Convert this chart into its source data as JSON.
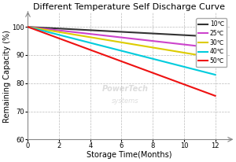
{
  "title": "Different Temperature Self Discharge Curve",
  "xlabel": "Storage Time(Months)",
  "ylabel": "Remaining Capacity (%)",
  "xlim": [
    0,
    13
  ],
  "ylim": [
    60,
    105
  ],
  "xticks": [
    0,
    2,
    4,
    6,
    8,
    10,
    12
  ],
  "yticks": [
    60,
    70,
    80,
    90,
    100
  ],
  "series": [
    {
      "label": "10℃",
      "color": "#333333",
      "x": [
        0,
        12
      ],
      "y": [
        100,
        96.5
      ]
    },
    {
      "label": "25℃",
      "color": "#cc44cc",
      "x": [
        0,
        12
      ],
      "y": [
        100,
        92.5
      ]
    },
    {
      "label": "30℃",
      "color": "#ddcc00",
      "x": [
        0,
        12
      ],
      "y": [
        100,
        89.0
      ]
    },
    {
      "label": "40℃",
      "color": "#00ccdd",
      "x": [
        0,
        12
      ],
      "y": [
        100,
        83.0
      ]
    },
    {
      "label": "50℃",
      "color": "#ee1111",
      "x": [
        0,
        12
      ],
      "y": [
        100,
        75.5
      ]
    }
  ],
  "watermark_line1": "PowerTech",
  "watermark_line2": "systems",
  "background_color": "#ffffff",
  "grid_color": "#bbbbbb",
  "title_fontsize": 8,
  "axis_label_fontsize": 7,
  "tick_fontsize": 6,
  "legend_fontsize": 5.5,
  "line_width": 1.5
}
